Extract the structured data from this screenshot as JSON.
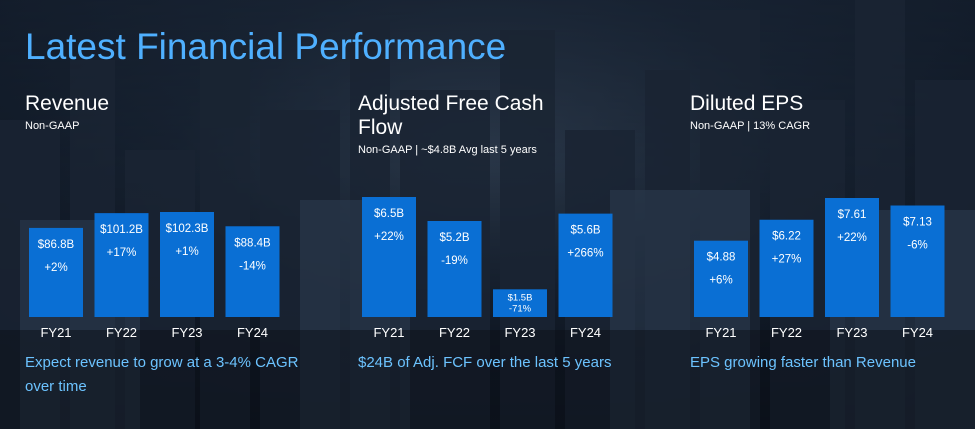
{
  "page_title": "Latest Financial Performance",
  "colors": {
    "title": "#4fb0ff",
    "bar": "#0a6fd4",
    "note": "#6cc3ff",
    "text": "#ffffff"
  },
  "chart_data": [
    {
      "type": "bar",
      "title": "Revenue",
      "subtitle": "Non-GAAP",
      "categories": [
        "FY21",
        "FY22",
        "FY23",
        "FY24"
      ],
      "values": [
        86.8,
        101.2,
        102.3,
        88.4
      ],
      "value_labels": [
        "$86.8B",
        "$101.2B",
        "$102.3B",
        "$88.4B"
      ],
      "growth_labels": [
        "+2%",
        "+17%",
        "+1%",
        "-14%"
      ],
      "ylim": [
        0,
        102.3
      ],
      "note": "Expect revenue to grow at a 3-4% CAGR over time"
    },
    {
      "type": "bar",
      "title": "Adjusted Free Cash Flow",
      "subtitle": "Non-GAAP | ~$4.8B Avg last 5 years",
      "categories": [
        "FY21",
        "FY22",
        "FY23",
        "FY24"
      ],
      "values": [
        6.5,
        5.2,
        1.5,
        5.6
      ],
      "value_labels": [
        "$6.5B",
        "$5.2B",
        "$1.5B",
        "$5.6B"
      ],
      "growth_labels": [
        "+22%",
        "-19%",
        "-71%",
        "+266%"
      ],
      "ylim": [
        0,
        6.5
      ],
      "note": "$24B of Adj. FCF over the last 5 years"
    },
    {
      "type": "bar",
      "title": "Diluted EPS",
      "subtitle": "Non-GAAP | 13% CAGR",
      "categories": [
        "FY21",
        "FY22",
        "FY23",
        "FY24"
      ],
      "values": [
        4.88,
        6.22,
        7.61,
        7.13
      ],
      "value_labels": [
        "$4.88",
        "$6.22",
        "$7.61",
        "$7.13"
      ],
      "growth_labels": [
        "+6%",
        "+27%",
        "+22%",
        "-6%"
      ],
      "ylim": [
        0,
        7.61
      ],
      "note": "EPS growing faster than Revenue"
    }
  ]
}
